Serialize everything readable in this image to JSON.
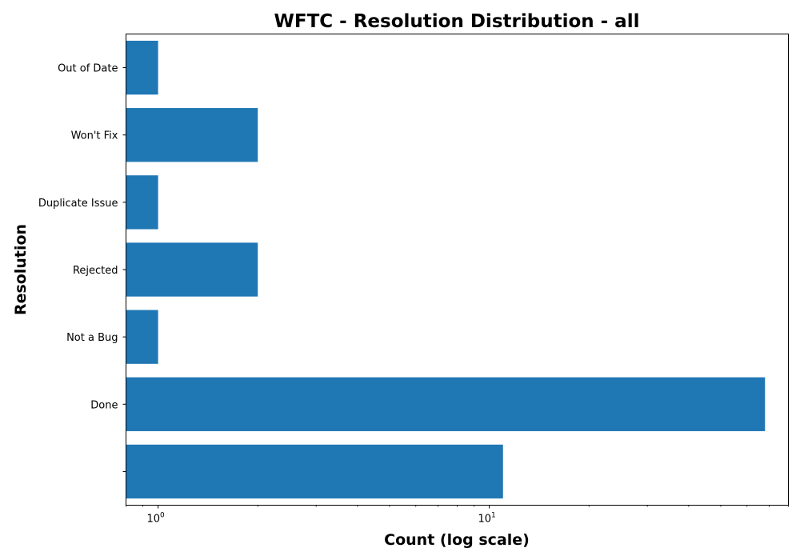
{
  "chart_data": {
    "type": "bar",
    "orientation": "horizontal",
    "title": "WFTC - Resolution Distribution - all",
    "xlabel": "Count (log scale)",
    "ylabel": "Resolution",
    "xscale": "log",
    "xlim": [
      0.8,
      80
    ],
    "x_ticks": [
      {
        "base": "10",
        "exp": "0",
        "value": 1
      },
      {
        "base": "10",
        "exp": "1",
        "value": 10
      }
    ],
    "categories": [
      "",
      "Done",
      "Not a Bug",
      "Rejected",
      "Duplicate Issue",
      "Won't Fix",
      "Out of Date"
    ],
    "values": [
      11,
      68,
      1,
      2,
      1,
      2,
      1
    ],
    "bar_color": "#1f77b4",
    "grid": false,
    "legend": "none"
  }
}
